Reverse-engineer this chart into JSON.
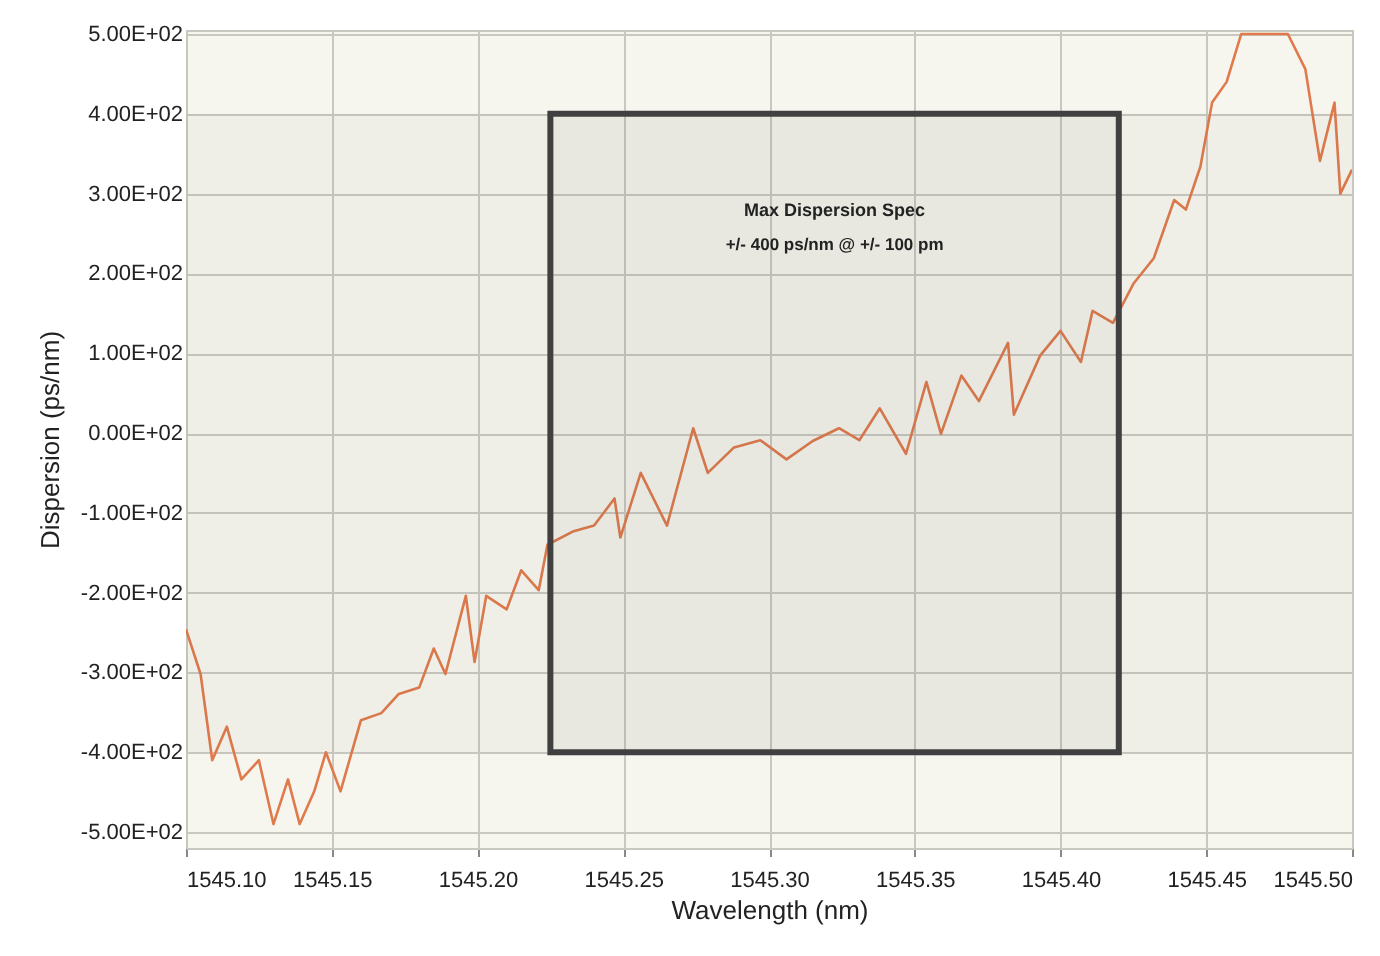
{
  "chart_data": {
    "type": "line",
    "xlabel": "Wavelength (nm)",
    "ylabel": "Dispersion (ps/nm)",
    "xlim": [
      1545.1,
      1545.5
    ],
    "xticks": [
      {
        "value": 1545.1,
        "label": "1545.10"
      },
      {
        "value": 1545.15,
        "label": "1545.15"
      },
      {
        "value": 1545.2,
        "label": "1545.20"
      },
      {
        "value": 1545.25,
        "label": "1545.25"
      },
      {
        "value": 1545.3,
        "label": "1545.30"
      },
      {
        "value": 1545.35,
        "label": "1545.35"
      },
      {
        "value": 1545.4,
        "label": "1545.40"
      },
      {
        "value": 1545.45,
        "label": "1545.45"
      },
      {
        "value": 1545.5,
        "label": "1545.50"
      }
    ],
    "ylim": [
      -520,
      505
    ],
    "yticks": [
      {
        "value": -500,
        "label": "-5.00E+02"
      },
      {
        "value": -400,
        "label": "-4.00E+02"
      },
      {
        "value": -300,
        "label": "-3.00E+02"
      },
      {
        "value": -200,
        "label": "-2.00E+02"
      },
      {
        "value": -100,
        "label": "-1.00E+02"
      },
      {
        "value": 0,
        "label": "0.00E+02"
      },
      {
        "value": 100,
        "label": "1.00E+02"
      },
      {
        "value": 200,
        "label": "2.00E+02"
      },
      {
        "value": 300,
        "label": "3.00E+02"
      },
      {
        "value": 400,
        "label": "4.00E+02"
      },
      {
        "value": 500,
        "label": "5.00E+02"
      }
    ],
    "grid": true,
    "series": [
      {
        "color": "#e07a4c",
        "x": [
          1545.1,
          1545.105,
          1545.109,
          1545.114,
          1545.119,
          1545.125,
          1545.13,
          1545.135,
          1545.139,
          1545.144,
          1545.148,
          1545.153,
          1545.16,
          1545.167,
          1545.173,
          1545.18,
          1545.185,
          1545.189,
          1545.196,
          1545.199,
          1545.203,
          1545.21,
          1545.215,
          1545.221,
          1545.224,
          1545.233,
          1545.24,
          1545.247,
          1545.249,
          1545.256,
          1545.265,
          1545.274,
          1545.279,
          1545.288,
          1545.297,
          1545.306,
          1545.315,
          1545.324,
          1545.331,
          1545.338,
          1545.347,
          1545.354,
          1545.359,
          1545.366,
          1545.372,
          1545.382,
          1545.384,
          1545.393,
          1545.4,
          1545.407,
          1545.411,
          1545.418,
          1545.425,
          1545.432,
          1545.439,
          1545.443,
          1545.448,
          1545.452,
          1545.457,
          1545.462,
          1545.478,
          1545.484,
          1545.489,
          1545.494,
          1545.496,
          1545.5
        ],
        "values": [
          -246,
          -302,
          -410,
          -368,
          -434,
          -410,
          -490,
          -434,
          -490,
          -449,
          -400,
          -449,
          -360,
          -351,
          -327,
          -319,
          -270,
          -302,
          -204,
          -287,
          -204,
          -221,
          -172,
          -197,
          -140,
          -123,
          -116,
          -82,
          -131,
          -50,
          -116,
          6,
          -50,
          -18,
          -9,
          -33,
          -10,
          6,
          -9,
          31,
          -26,
          64,
          -1,
          72,
          40,
          113,
          23,
          97,
          128,
          89,
          153,
          138,
          187,
          219,
          292,
          280,
          334,
          414,
          440,
          500,
          500,
          456,
          341,
          414,
          300,
          330
        ]
      }
    ],
    "bands": [
      {
        "axis": "x",
        "from": 1545.225,
        "to": 1545.42,
        "color": "#404040"
      },
      {
        "axis": "y",
        "from": -400,
        "to": 400,
        "color": "#404040"
      }
    ],
    "annotations": [
      "Max Dispersion Spec",
      "+/- 400 ps/nm @ +/- 100 pm"
    ]
  }
}
